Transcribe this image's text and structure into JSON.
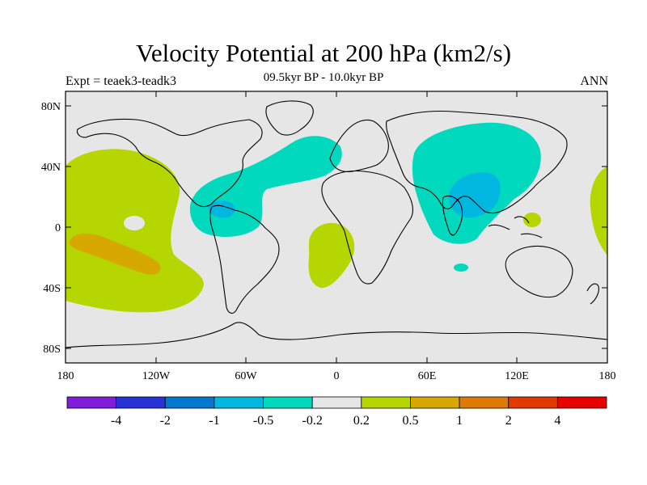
{
  "header": {
    "title": "Velocity Potential at 200 hPa (km2/s)",
    "experiment": "Expt = teaek3-teadk3",
    "period": "09.5kyr BP - 10.0kyr BP",
    "season": "ANN"
  },
  "axes": {
    "lat_ticks": [
      "80N",
      "40N",
      "0",
      "40S",
      "80S"
    ],
    "lon_ticks": [
      "180",
      "120W",
      "60W",
      "0",
      "60E",
      "120E",
      "180"
    ]
  },
  "colorbar": {
    "colors": [
      "#7f1ddb",
      "#2732d6",
      "#0077d1",
      "#00b7e0",
      "#00d9bd",
      "#e6e6e6",
      "#b6d600",
      "#d7a800",
      "#df7a00",
      "#e03a00",
      "#e60000"
    ],
    "labels": [
      "-4",
      "-2",
      "-1",
      "-0.5",
      "-0.2",
      "0.2",
      "0.5",
      "1",
      "2",
      "4"
    ]
  },
  "palette": {
    "background": "#e6e6e6",
    "negative_weak": "#00d9bd",
    "negative_mid": "#00b7e0",
    "positive_weak": "#b6d600",
    "positive_mid": "#d7a800",
    "coast": "#000000"
  }
}
